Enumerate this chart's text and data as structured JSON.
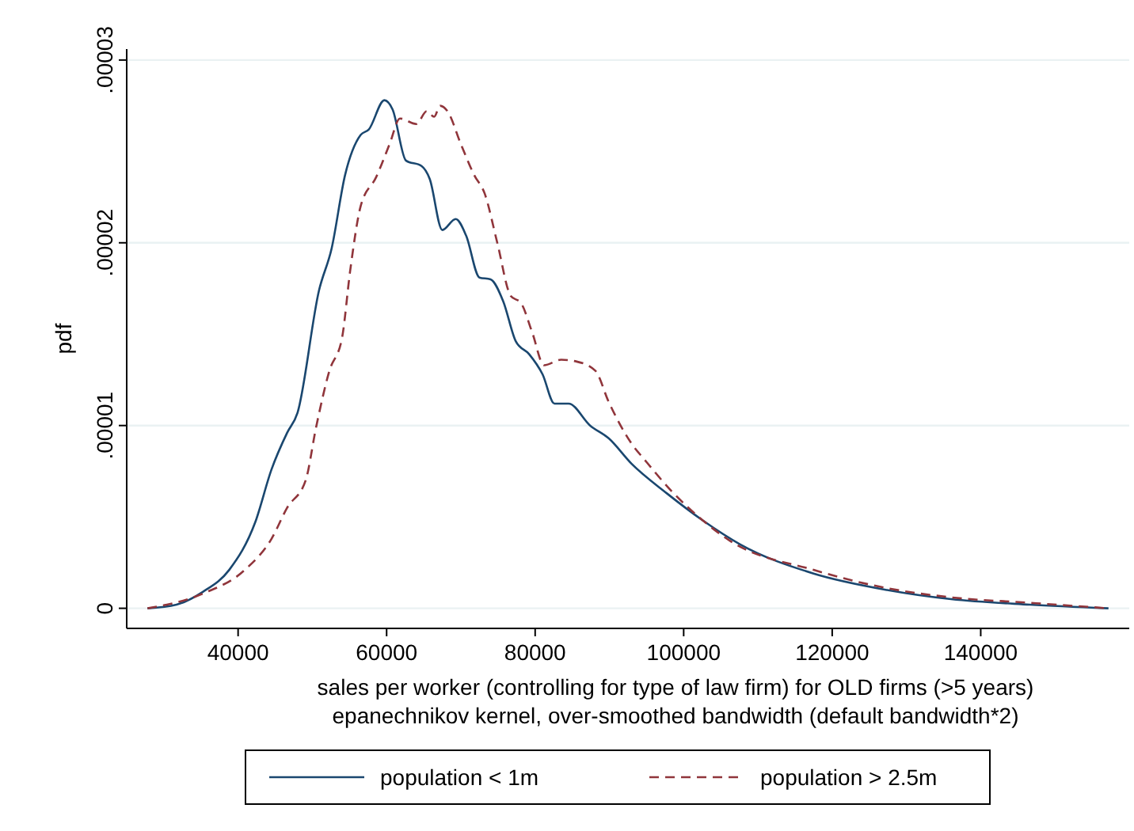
{
  "chart_data": {
    "type": "line",
    "xlabel": "sales per worker (controlling for type of law firm) for OLD firms (>5 years)",
    "ylabel": "pdf",
    "annotations": [
      "epanechnikov kernel, over-smoothed bandwidth (default bandwidth*2)"
    ],
    "xlim": [
      25000,
      160000
    ],
    "ylim": [
      -1.1e-06,
      3.06e-05
    ],
    "xticks": [
      40000,
      60000,
      80000,
      100000,
      120000,
      140000
    ],
    "yticks": [
      {
        "value": 0,
        "label": "0"
      },
      {
        "value": 1e-05,
        "label": ".00001"
      },
      {
        "value": 2e-05,
        "label": ".00002"
      },
      {
        "value": 3e-05,
        "label": ".00003"
      }
    ],
    "grid": "y",
    "legend": "bottom",
    "series": [
      {
        "name": "population < 1m",
        "color": "#1a476f",
        "line_style": "solid",
        "x": [
          27800,
          31700,
          35250,
          38800,
          42300,
          44500,
          46600,
          48000,
          50900,
          52600,
          54400,
          56500,
          57600,
          59700,
          60800,
          62600,
          64700,
          65800,
          67500,
          69300,
          70700,
          72500,
          74000,
          75700,
          77400,
          79200,
          81000,
          82600,
          84500,
          87400,
          89900,
          93000,
          97700,
          102600,
          107600,
          117500,
          127400,
          136000,
          146600,
          157200
        ],
        "values": [
          0,
          2e-07,
          9e-07,
          2.1e-06,
          4.7e-06,
          7.6e-06,
          9.6e-06,
          1.07e-05,
          1.74e-05,
          1.97e-05,
          2.37e-05,
          2.59e-05,
          2.62e-05,
          2.78e-05,
          2.73e-05,
          2.45e-05,
          2.42e-05,
          2.35e-05,
          2.07e-05,
          2.13e-05,
          2.04e-05,
          1.81e-05,
          1.8e-05,
          1.68e-05,
          1.46e-05,
          1.39e-05,
          1.28e-05,
          1.12e-05,
          1.12e-05,
          1e-05,
          9.3e-06,
          7.9e-06,
          6.3e-06,
          4.8e-06,
          3.5e-06,
          1.9e-06,
          1e-06,
          5e-07,
          2e-07,
          0
        ]
      },
      {
        "name": "population > 2.5m",
        "color": "#90353b",
        "line_style": "dashed",
        "x": [
          27800,
          35250,
          40900,
          44500,
          46600,
          49100,
          50500,
          52300,
          54000,
          55100,
          56500,
          58600,
          60400,
          61800,
          64000,
          65400,
          66400,
          67200,
          68200,
          70000,
          71800,
          73200,
          74900,
          76700,
          78100,
          79600,
          81200,
          83500,
          85600,
          88100,
          89900,
          93000,
          94800,
          98400,
          102600,
          106200,
          117500,
          127400,
          136000,
          146600,
          157200
        ],
        "values": [
          0,
          8e-07,
          2.1e-06,
          3.8e-06,
          5.5e-06,
          7e-06,
          9.9e-06,
          1.3e-05,
          1.48e-05,
          1.85e-05,
          2.2e-05,
          2.36e-05,
          2.54e-05,
          2.68e-05,
          2.65e-05,
          2.72e-05,
          2.69e-05,
          2.75e-05,
          2.72e-05,
          2.54e-05,
          2.37e-05,
          2.27e-05,
          2e-05,
          1.71e-05,
          1.67e-05,
          1.51e-05,
          1.33e-05,
          1.36e-05,
          1.35e-05,
          1.3e-05,
          1.13e-05,
          9e-06,
          8.1e-06,
          6.4e-06,
          4.8e-06,
          3.7e-06,
          2.1e-06,
          1.1e-06,
          6e-07,
          3e-07,
          0
        ]
      }
    ]
  }
}
